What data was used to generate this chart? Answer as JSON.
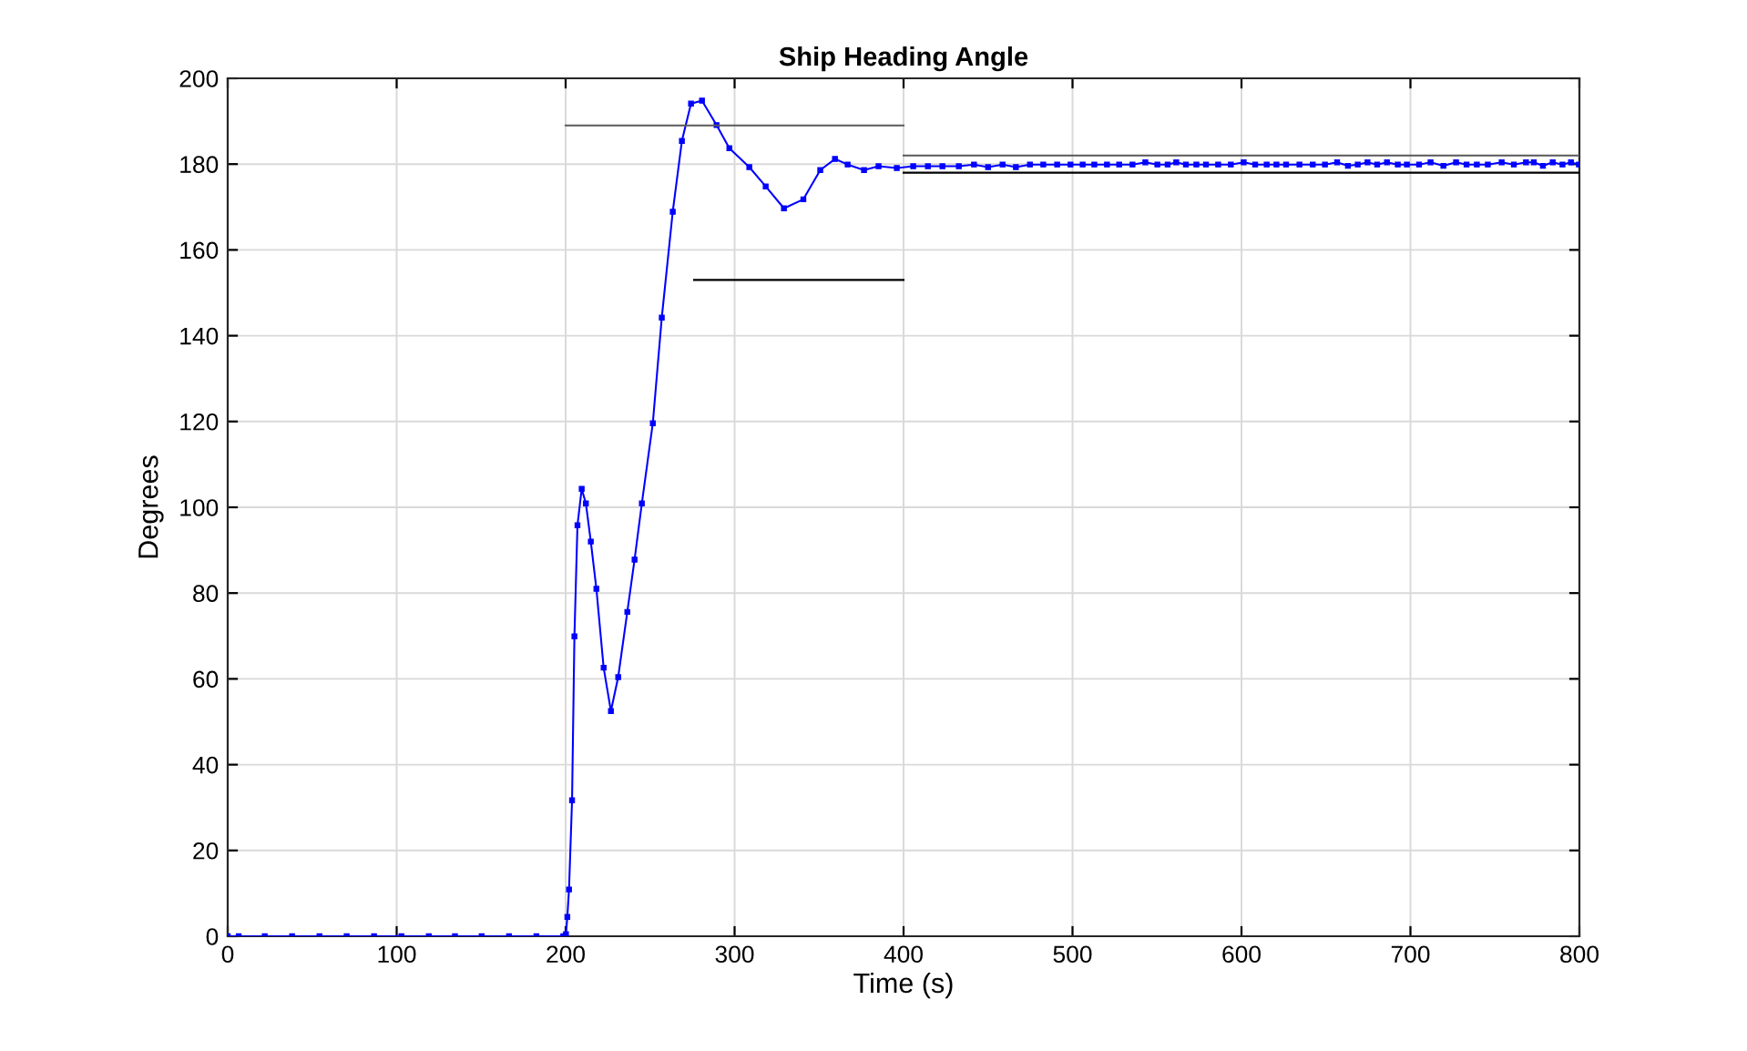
{
  "chart_data": {
    "type": "line",
    "title": "Ship Heading Angle",
    "xlabel": "Time (s)",
    "ylabel": "Degrees",
    "xlim": [
      0,
      800
    ],
    "xticks": [
      0,
      100,
      200,
      300,
      400,
      500,
      600,
      700,
      800
    ],
    "ylim": [
      0,
      200
    ],
    "yticks": [
      0,
      20,
      40,
      60,
      80,
      100,
      120,
      140,
      160,
      180,
      200
    ],
    "grid": true,
    "marker": "square",
    "line_style": "solid",
    "series": [
      {
        "color": "#0000ff",
        "x": [
          0,
          6.5,
          21.9,
          38.1,
          54.3,
          70.4,
          86.6,
          102.8,
          119,
          134.5,
          150.3,
          166.5,
          182.7,
          198.6,
          200.2,
          201,
          202,
          203.8,
          205.2,
          207,
          209.5,
          212,
          214.9,
          218.2,
          222.5,
          226.8,
          231.1,
          236.5,
          240.8,
          245.1,
          251.6,
          256.9,
          263.4,
          268.8,
          274.2,
          280.7,
          289.3,
          296.9,
          308.7,
          318.4,
          329.2,
          340.7,
          350.7,
          359.4,
          366.9,
          376.6,
          385.2,
          396,
          405.7,
          414.4,
          423,
          432.7,
          441.7,
          450,
          458.6,
          466.5,
          474.8,
          482.7,
          490.9,
          498.8,
          506,
          512.9,
          520.4,
          527.6,
          535.5,
          543.1,
          550.2,
          556.3,
          561.4,
          567.1,
          573.3,
          579,
          586.2,
          593.7,
          601.3,
          608.1,
          614.9,
          620.7,
          626.4,
          634.3,
          642.2,
          649.4,
          656.6,
          663,
          668.8,
          674.6,
          680.3,
          686.1,
          692.5,
          697.9,
          705.1,
          711.9,
          719.5,
          727,
          733.2,
          739.3,
          745.8,
          754,
          761.2,
          768.4,
          773,
          778.4,
          784.2,
          790,
          795,
          799.7
        ],
        "values": [
          0,
          0,
          0,
          0,
          0,
          0,
          0,
          0,
          0,
          0,
          0,
          0,
          0,
          0,
          0.5,
          4.5,
          10.9,
          31.7,
          69.9,
          95.8,
          104.3,
          100.9,
          92.0,
          81.0,
          62.6,
          52.5,
          60.4,
          75.6,
          87.8,
          100.9,
          119.6,
          144.2,
          168.9,
          185.4,
          194.1,
          194.8,
          189.1,
          183.7,
          179.3,
          174.8,
          169.7,
          171.8,
          178.6,
          181.2,
          179.9,
          178.6,
          179.5,
          179.1,
          179.5,
          179.5,
          179.5,
          179.5,
          179.9,
          179.3,
          179.9,
          179.3,
          179.9,
          179.9,
          179.9,
          179.9,
          179.9,
          179.9,
          179.9,
          179.9,
          179.9,
          180.4,
          179.9,
          179.9,
          180.4,
          179.9,
          179.9,
          179.9,
          179.9,
          179.9,
          180.4,
          179.9,
          179.9,
          179.9,
          179.9,
          179.9,
          179.9,
          179.9,
          180.4,
          179.6,
          179.9,
          180.4,
          179.9,
          180.4,
          179.9,
          179.9,
          179.9,
          180.4,
          179.6,
          180.4,
          179.9,
          179.9,
          179.9,
          180.4,
          179.9,
          180.4,
          180.4,
          179.6,
          180.4,
          179.9,
          180.4,
          179.9
        ]
      },
      {
        "color": "#595959",
        "marker": "none",
        "x": [
          200,
          400
        ],
        "values": [
          189,
          189
        ]
      },
      {
        "color": "#000000",
        "marker": "none",
        "x": [
          276,
          400
        ],
        "values": [
          153,
          153
        ]
      },
      {
        "color": "#595959",
        "marker": "none",
        "x": [
          400,
          800
        ],
        "values": [
          182,
          182
        ]
      },
      {
        "color": "#000000",
        "marker": "none",
        "x": [
          400,
          800
        ],
        "values": [
          178,
          178
        ]
      }
    ]
  }
}
